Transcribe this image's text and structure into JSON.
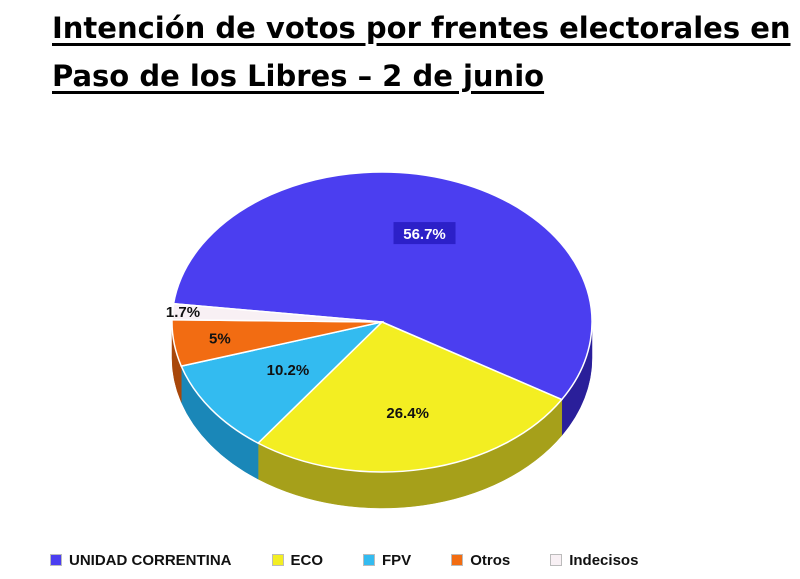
{
  "page": {
    "title_line1": "Intención de votos por frentes electorales en",
    "title_line2": "Paso de los Libres – 2 de junio"
  },
  "chart_data": {
    "type": "pie",
    "title": "Intención de votos por frentes electorales en Paso de los Libres – 2 de junio",
    "legend_position": "bottom",
    "slices": [
      {
        "label": "UNIDAD CORRENTINA",
        "value": 56.7,
        "display": "56.7%",
        "color": "#4b3ef0",
        "side_color": "#2a1f9a"
      },
      {
        "label": "ECO",
        "value": 26.4,
        "display": "26.4%",
        "color": "#f3ee22",
        "side_color": "#a6a01a"
      },
      {
        "label": "FPV",
        "value": 10.2,
        "display": "10.2%",
        "color": "#33bbf0",
        "side_color": "#1a87b8"
      },
      {
        "label": "Otros",
        "value": 5,
        "display": "5%",
        "color": "#f26c12",
        "side_color": "#a8470a"
      },
      {
        "label": "Indecisos",
        "value": 1.7,
        "display": "1.7%",
        "color": "#f8f0f4",
        "side_color": "#b9b1b6"
      }
    ]
  }
}
